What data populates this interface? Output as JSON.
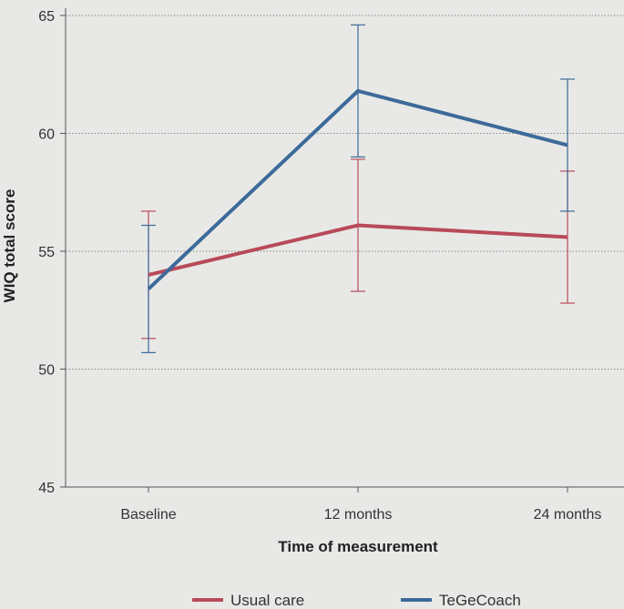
{
  "chart_data": {
    "type": "line",
    "title": "",
    "xlabel": "Time of measurement",
    "ylabel": "WIQ total score",
    "categories": [
      "Baseline",
      "12 months",
      "24 months"
    ],
    "ylim": [
      45,
      65
    ],
    "yticks": [
      45,
      50,
      55,
      60,
      65
    ],
    "grid": "horizontal dotted",
    "legend": "bottom",
    "series": [
      {
        "name": "Usual care",
        "color": "#b84a5a",
        "values": [
          54.0,
          56.1,
          55.6
        ],
        "err_low": [
          51.3,
          53.3,
          52.8
        ],
        "err_high": [
          56.7,
          58.9,
          58.4
        ]
      },
      {
        "name": "TeGeCoach",
        "color": "#3d6a99",
        "values": [
          53.4,
          61.8,
          59.5
        ],
        "err_low": [
          50.7,
          59.0,
          56.7
        ],
        "err_high": [
          56.1,
          64.6,
          62.3
        ]
      }
    ]
  }
}
